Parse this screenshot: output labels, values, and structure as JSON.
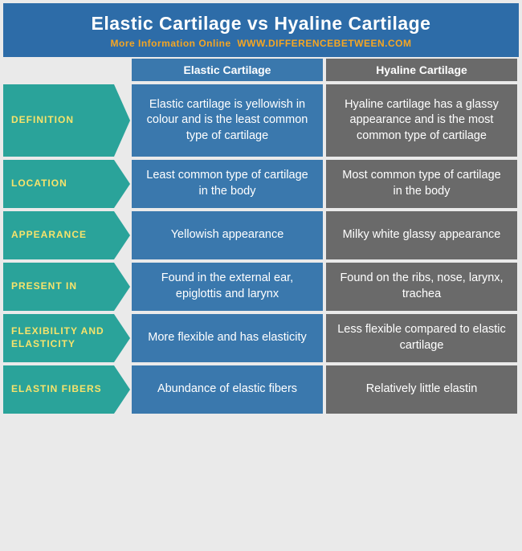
{
  "header": {
    "title": "Elastic Cartilage vs Hyaline Cartilage",
    "more_label": "More Information Online",
    "site": "WWW.DIFFERENCEBETWEEN.COM"
  },
  "columns": {
    "col1": "Elastic Cartilage",
    "col2": "Hyaline Cartilage"
  },
  "rows": [
    {
      "label": "DEFINITION",
      "c1": "Elastic cartilage is yellowish in colour and is the least common type of cartilage",
      "c2": "Hyaline cartilage has a glassy appearance and is the most common type of cartilage",
      "big": true
    },
    {
      "label": "LOCATION",
      "c1": "Least common type of cartilage in the body",
      "c2": "Most common type of cartilage in the body",
      "big": false
    },
    {
      "label": "APPEARANCE",
      "c1": "Yellowish appearance",
      "c2": "Milky white glassy appearance",
      "big": false
    },
    {
      "label": "PRESENT IN",
      "c1": "Found in the external ear, epiglottis and larynx",
      "c2": "Found on the ribs, nose, larynx, trachea",
      "big": false
    },
    {
      "label": "FLEXIBILITY AND ELASTICITY",
      "c1": "More flexible and has elasticity",
      "c2": "Less flexible compared to elastic cartilage",
      "big": false
    },
    {
      "label": "ELASTIN FIBERS",
      "c1": "Abundance of elastic fibers",
      "c2": "Relatively little elastin",
      "big": false
    }
  ],
  "colors": {
    "header_bg": "#2d6ca8",
    "accent": "#f5a623",
    "arrow_bg": "#2aa39a",
    "arrow_text": "#f7e36b",
    "col1_bg": "#3a78ad",
    "col2_bg": "#6a6a6a",
    "page_bg": "#eaeaea",
    "cell_text": "#ffffff"
  }
}
